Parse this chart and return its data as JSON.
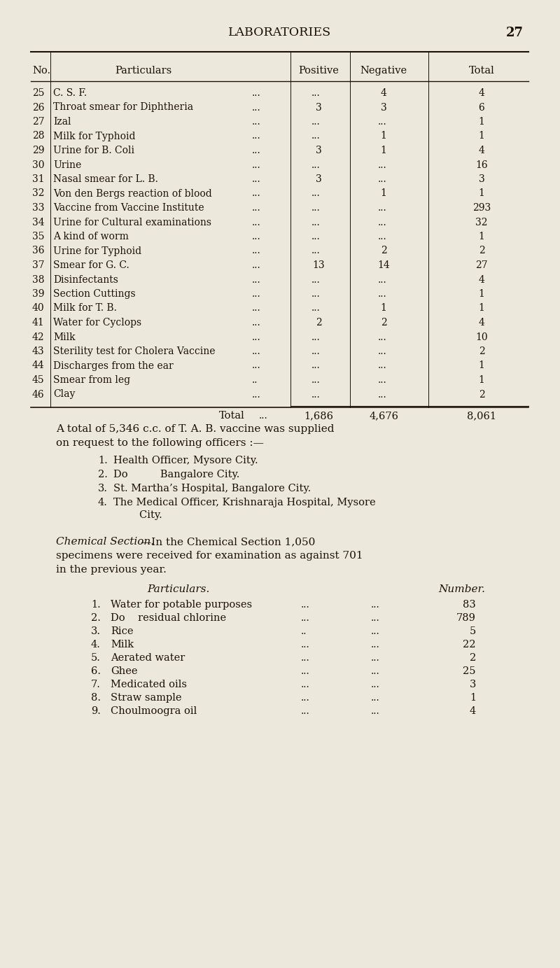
{
  "bg_color": "#ede8dc",
  "text_color": "#1a1008",
  "title": "LABORATORIES",
  "page_num": "27",
  "table_rows": [
    [
      "25",
      "C. S. F.",
      "...",
      "...",
      "4",
      "4"
    ],
    [
      "26",
      "Throat smear for Diphtheria",
      "...",
      "3",
      "3",
      "6"
    ],
    [
      "27",
      "Izal",
      "...",
      "...",
      "...",
      "1"
    ],
    [
      "28",
      "Milk for Typhoid",
      "...",
      "...",
      "1",
      "1"
    ],
    [
      "29",
      "Urine for B. Coli",
      "...",
      "3",
      "1",
      "4"
    ],
    [
      "30",
      "Urine",
      "...",
      "...",
      "...",
      "16"
    ],
    [
      "31",
      "Nasal smear for L. B.",
      "...",
      "3",
      "...",
      "3"
    ],
    [
      "32",
      "Von den Bergs reaction of blood",
      "...",
      "...",
      "1",
      "1"
    ],
    [
      "33",
      "Vaccine from Vaccine Institute",
      "...",
      "...",
      "...",
      "293"
    ],
    [
      "34",
      "Urine for Cultural examinations",
      "...",
      "...",
      "...",
      "32"
    ],
    [
      "35",
      "A kind of worm",
      "...",
      "...",
      "...",
      "1"
    ],
    [
      "36",
      "Urine for Typhoid",
      "...",
      "...",
      "2",
      "2"
    ],
    [
      "37",
      "Smear for G. C.",
      "...",
      "13",
      "14",
      "27"
    ],
    [
      "38",
      "Disinfectants",
      "...",
      "...",
      "...",
      "4"
    ],
    [
      "39",
      "Section Cuttings",
      "...",
      "...",
      "...",
      "1"
    ],
    [
      "40",
      "Milk for T. B.",
      "...",
      "...",
      "1",
      "1"
    ],
    [
      "41",
      "Water for Cyclops",
      "...",
      "2",
      "2",
      "4"
    ],
    [
      "42",
      "Milk",
      "...",
      "...",
      "...",
      "10"
    ],
    [
      "43",
      "Sterility test for Cholera Vaccine",
      "...",
      "...",
      "...",
      "2"
    ],
    [
      "44",
      "Discharges from the ear",
      "...",
      "...",
      "...",
      "1"
    ],
    [
      "45",
      "Smear from leg",
      "..",
      "...",
      "...",
      "1"
    ],
    [
      "46",
      "Clay",
      "...",
      "...",
      "...",
      "2"
    ]
  ],
  "list1_items": [
    [
      "1.",
      "Health Officer, Mysore City."
    ],
    [
      "2.",
      "Do          Bangalore City."
    ],
    [
      "3.",
      "St. Martha’s Hospital, Bangalore City."
    ],
    [
      "4.",
      "The Medical Officer, Krishnaraja Hospital, Mysore\n        City."
    ]
  ],
  "chem_rows": [
    [
      "1.",
      "Water for potable purposes",
      "...",
      "...",
      "83"
    ],
    [
      "2.",
      "Do    residual chlorine",
      "...",
      "...",
      "789"
    ],
    [
      "3.",
      "Rice",
      "..",
      "...",
      "5"
    ],
    [
      "4.",
      "Milk",
      "...",
      "...",
      "22"
    ],
    [
      "5.",
      "Aerated water",
      "...",
      "...",
      "2"
    ],
    [
      "6.",
      "Ghee",
      "...",
      "...",
      "25"
    ],
    [
      "7.",
      "Medicated oils",
      "...",
      "...",
      "3"
    ],
    [
      "8.",
      "Straw sample",
      "...",
      "...",
      "1"
    ],
    [
      "9.",
      "Choulmoogra oil",
      "...",
      "...",
      "4"
    ]
  ]
}
